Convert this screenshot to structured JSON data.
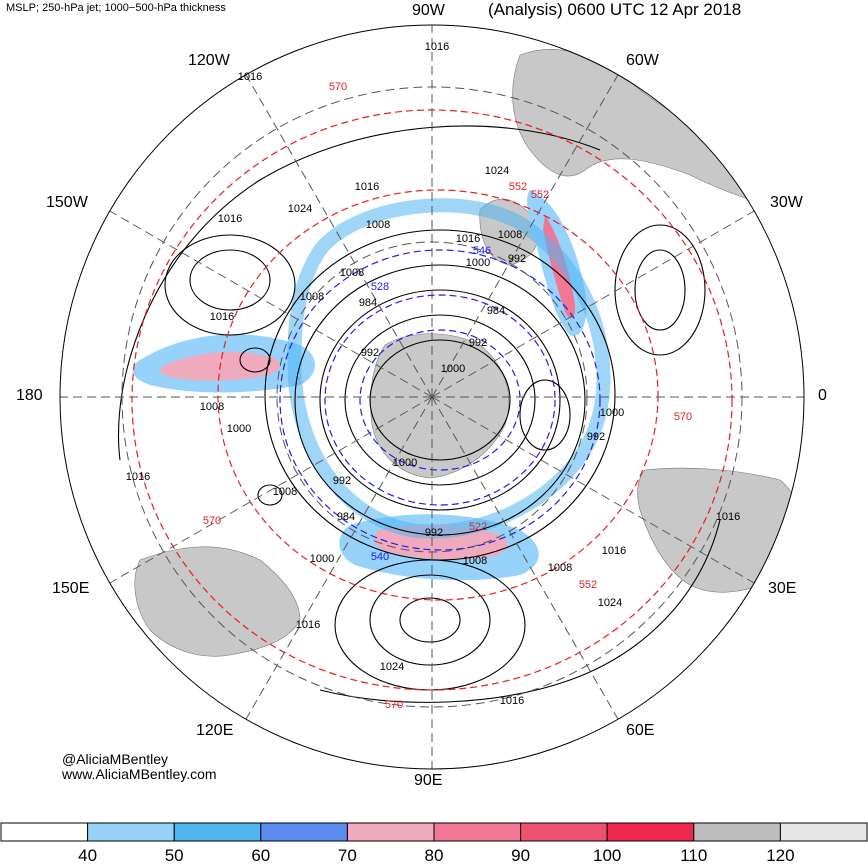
{
  "header": {
    "fields": "MSLP; 250-hPa jet; 1000−500-hPa thickness",
    "title": "(Analysis) 0600 UTC 12 Apr 2018"
  },
  "longitude_labels": {
    "lon_90w": "90W",
    "lon_60w": "60W",
    "lon_30w": "30W",
    "lon_0": "0",
    "lon_30e": "30E",
    "lon_60e": "60E",
    "lon_90e": "90E",
    "lon_120e": "120E",
    "lon_150e": "150E",
    "lon_180": "180",
    "lon_150w": "150W",
    "lon_120w": "120W"
  },
  "credits": {
    "handle": "@AliciaMBentley",
    "site": "www.AliciaMBentley.com"
  },
  "colorbar": {
    "bins": [
      {
        "color": "#ffffff"
      },
      {
        "color": "#96d2fa"
      },
      {
        "color": "#50b4f0"
      },
      {
        "color": "#5a8cf0"
      },
      {
        "color": "#f0aabe"
      },
      {
        "color": "#f07896"
      },
      {
        "color": "#f05070"
      },
      {
        "color": "#f02850"
      },
      {
        "color": "#bebebe"
      },
      {
        "color": "#e6e6e6"
      }
    ],
    "tick_labels": [
      "40",
      "50",
      "60",
      "70",
      "80",
      "90",
      "100",
      "110",
      "120"
    ]
  },
  "contour_labels": {
    "mslp": [
      "1016",
      "1016",
      "1024",
      "1016",
      "1024",
      "1016",
      "1008",
      "1016",
      "1008",
      "992",
      "1008",
      "984",
      "984",
      "1016",
      "992",
      "992",
      "1008",
      "1000",
      "1000",
      "992",
      "1000",
      "992",
      "1008",
      "1016",
      "1008",
      "984",
      "992",
      "1000",
      "1008",
      "1024",
      "1016",
      "1016",
      "1024",
      "1016",
      "1000",
      "1008",
      "1016",
      "1000"
    ],
    "thickness": [
      "570",
      "552",
      "546",
      "528",
      "522",
      "540",
      "552",
      "570",
      "570",
      "570",
      "552"
    ]
  },
  "map": {
    "land_color": "#c8c8c8",
    "mslp_color": "#000000",
    "thickness_warm_color": "#e61e1e",
    "thickness_cold_color": "#1e1ee6"
  }
}
